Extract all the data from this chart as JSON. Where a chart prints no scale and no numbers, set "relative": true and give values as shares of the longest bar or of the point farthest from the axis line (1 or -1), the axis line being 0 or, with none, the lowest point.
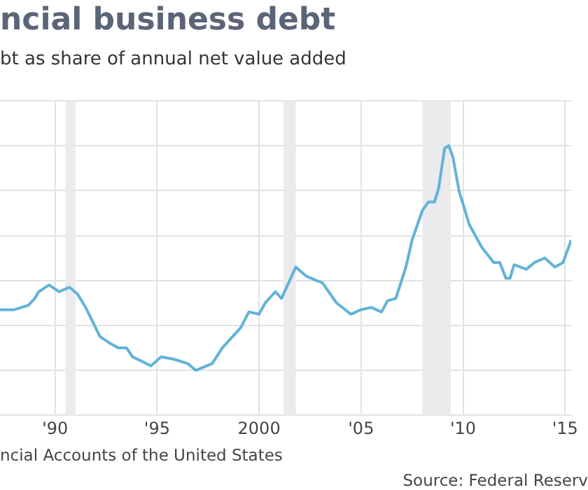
{
  "chart_data": {
    "type": "line",
    "title": "ncial business debt",
    "subtitle": "bt as share of annual net value added",
    "annotations": [
      "ncial Accounts of the United States",
      "Source: Federal Reserv"
    ],
    "relative": true,
    "color": "#62b3d7",
    "grid": true,
    "xlim": [
      1987.3,
      2015.3
    ],
    "xticks": [
      {
        "value": 1990,
        "label": "'90"
      },
      {
        "value": 1995,
        "label": "'95"
      },
      2000,
      {
        "value": 2005,
        "label": "'05"
      },
      {
        "value": 2010,
        "label": "'10"
      },
      {
        "value": 2015,
        "label": "'15"
      }
    ],
    "bands": [
      {
        "axis": "x",
        "from": 1990.5,
        "to": 1991.0,
        "color": "#ebebed"
      },
      {
        "axis": "x",
        "from": 2001.2,
        "to": 2001.8,
        "color": "#ebebed"
      },
      {
        "axis": "x",
        "from": 2008.0,
        "to": 2009.4,
        "color": "#ebebed"
      }
    ],
    "x": [
      1987.3,
      1988.0,
      1988.7,
      1989.0,
      1989.2,
      1989.7,
      1990.2,
      1990.7,
      1991.1,
      1991.5,
      1992.2,
      1992.7,
      1993.1,
      1993.5,
      1993.8,
      1994.7,
      1995.2,
      1995.8,
      1996.5,
      1996.9,
      1997.7,
      1998.2,
      1999.1,
      1999.5,
      2000.0,
      2000.3,
      2000.8,
      2001.1,
      2001.8,
      2002.3,
      2002.8,
      2003.1,
      2003.8,
      2004.5,
      2005.0,
      2005.5,
      2006.0,
      2006.3,
      2006.7,
      2007.2,
      2007.5,
      2008.0,
      2008.3,
      2008.6,
      2008.8,
      2009.1,
      2009.3,
      2009.5,
      2009.8,
      2010.3,
      2010.9,
      2011.5,
      2011.8,
      2012.1,
      2012.3,
      2012.5,
      2013.1,
      2013.5,
      2014.0,
      2014.5,
      2014.9,
      2015.3
    ],
    "values": [
      0.27,
      0.27,
      0.29,
      0.32,
      0.35,
      0.38,
      0.35,
      0.37,
      0.34,
      0.28,
      0.15,
      0.12,
      0.1,
      0.1,
      0.06,
      0.02,
      0.06,
      0.05,
      0.03,
      0,
      0.03,
      0.1,
      0.19,
      0.26,
      0.25,
      0.3,
      0.35,
      0.32,
      0.46,
      0.42,
      0.4,
      0.39,
      0.3,
      0.25,
      0.27,
      0.28,
      0.26,
      0.31,
      0.32,
      0.46,
      0.58,
      0.71,
      0.75,
      0.75,
      0.81,
      0.99,
      1,
      0.95,
      0.8,
      0.65,
      0.55,
      0.48,
      0.48,
      0.41,
      0.41,
      0.47,
      0.45,
      0.48,
      0.5,
      0.46,
      0.48,
      0.58
    ]
  }
}
